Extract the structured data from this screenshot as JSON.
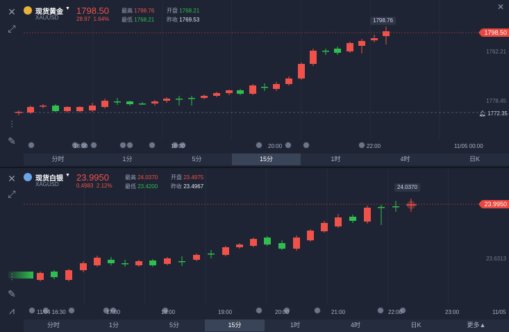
{
  "gold": {
    "name": "现货黄金",
    "code": "XAUUSD",
    "last": "1798.50",
    "change": "28.97",
    "change_pct": "1.64%",
    "high_label": "最高",
    "high": "1798.76",
    "open_label": "开盘",
    "open": "1768.21",
    "low_label": "最低",
    "low": "1768.21",
    "prev_label": "昨收",
    "prev": "1769.53",
    "tooltip": "1798.76",
    "price_tag": "1798.50",
    "y_labels": [
      "1762.21",
      "1778.45"
    ],
    "alert_price": "1772.35",
    "x_labels": [
      "18:00",
      "18:00",
      "20:00",
      "22:00",
      "11/05 00:00"
    ],
    "tabs": [
      "分时",
      "1分",
      "5分",
      "15分",
      "1时",
      "4时",
      "日K"
    ],
    "active_tab": 3
  },
  "silver": {
    "name": "现货白银",
    "code": "XAGUSD",
    "last": "23.9950",
    "change": "0.4983",
    "change_pct": "2.12%",
    "high_label": "最高",
    "high": "24.0370",
    "open_label": "开盘",
    "open": "23.4975",
    "low_label": "最低",
    "low": "23.4200",
    "prev_label": "昨收",
    "prev": "23.4967",
    "tooltip": "24.0370",
    "price_tag": "23.9950",
    "y_labels": [
      "23.6313"
    ],
    "x_labels": [
      "11/04 16:30",
      "17:00",
      "18:00",
      "19:00",
      "20:00",
      "21:00",
      "22:00",
      "23:00",
      "11/05"
    ],
    "tabs": [
      "分时",
      "1分",
      "5分",
      "15分",
      "1时",
      "4时",
      "日K",
      "更多"
    ],
    "active_tab": 3
  },
  "colors": {
    "up": "#f0524a",
    "down": "#2fbf4e",
    "bg": "#1e2434"
  },
  "icons": [
    "close-icon",
    "expand-icon",
    "indicator-icon",
    "draw-icon",
    "line-tool-icon"
  ]
}
